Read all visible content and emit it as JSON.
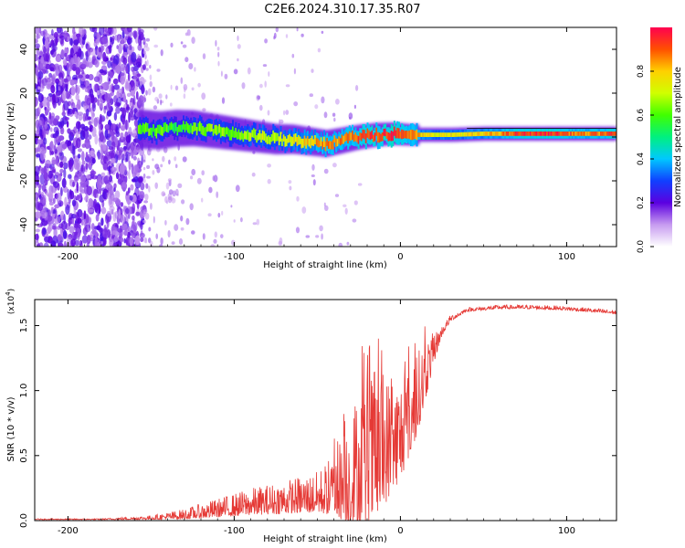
{
  "title": "C2E6.2024.310.17.35.R07",
  "chart_data": [
    {
      "type": "heatmap",
      "title": "C2E6.2024.310.17.35.R07",
      "xlabel": "Height of straight line (km)",
      "ylabel": "Frequency (Hz)",
      "xlim": [
        -220,
        130
      ],
      "ylim": [
        -50,
        50
      ],
      "xticks": [
        -200,
        -100,
        0,
        100
      ],
      "yticks": [
        -40,
        -20,
        0,
        20,
        40
      ],
      "xtick_labels": [
        "-200",
        "-100",
        "0",
        "100"
      ],
      "ytick_labels": [
        "-40",
        "-20",
        "0",
        "20",
        "40"
      ],
      "colorbar": {
        "label": "Normalized spectral amplitude",
        "range": [
          0.0,
          1.0
        ],
        "ticks": [
          0.0,
          0.2,
          0.4,
          0.6,
          0.8
        ],
        "tick_labels": [
          "0.0",
          "0.2",
          "0.4",
          "0.6",
          "0.8"
        ]
      },
      "signal_band": [
        [
          -155,
          3.5,
          0.6
        ],
        [
          -145,
          3,
          0.6
        ],
        [
          -135,
          4,
          0.55
        ],
        [
          -125,
          4,
          0.6
        ],
        [
          -115,
          3,
          0.65
        ],
        [
          -105,
          2,
          0.65
        ],
        [
          -95,
          1,
          0.65
        ],
        [
          -85,
          0,
          0.7
        ],
        [
          -75,
          -1,
          0.7
        ],
        [
          -65,
          -1,
          0.75
        ],
        [
          -55,
          -2,
          0.8
        ],
        [
          -45,
          -3,
          0.85
        ],
        [
          -35,
          -1.5,
          0.85
        ],
        [
          -25,
          0,
          0.9
        ],
        [
          -15,
          1,
          0.92
        ],
        [
          -5,
          1.5,
          0.95
        ],
        [
          5,
          1,
          0.9
        ],
        [
          15,
          1,
          0.75
        ],
        [
          30,
          1,
          0.75
        ],
        [
          50,
          1.5,
          0.78
        ],
        [
          70,
          1.5,
          0.92
        ],
        [
          90,
          1.5,
          0.95
        ],
        [
          110,
          1.5,
          0.85
        ],
        [
          125,
          1.5,
          0.9
        ]
      ]
    },
    {
      "type": "line",
      "xlabel": "Height of straight line (km)",
      "ylabel": "SNR (10 * v/v)",
      "scale_label": "(x10",
      "scale_exp": "4",
      "scale_close": ")",
      "xlim": [
        -220,
        130
      ],
      "ylim": [
        0,
        1.7
      ],
      "xticks": [
        -200,
        -100,
        0,
        100
      ],
      "yticks": [
        0.0,
        0.5,
        1.0,
        1.5
      ],
      "xtick_labels": [
        "-200",
        "-100",
        "0",
        "100"
      ],
      "ytick_labels": [
        "0.0",
        "0.5",
        "1.0",
        "1.5"
      ],
      "color": "#e53935",
      "envelope": {
        "x": [
          -220,
          -180,
          -150,
          -130,
          -110,
          -90,
          -70,
          -50,
          -40,
          -30,
          -25,
          -20,
          -15,
          -10,
          -5,
          0,
          5,
          10,
          15,
          20,
          25,
          30,
          40,
          60,
          80,
          100,
          120,
          130
        ],
        "base": [
          0.01,
          0.01,
          0.02,
          0.04,
          0.08,
          0.12,
          0.15,
          0.18,
          0.22,
          0.3,
          0.35,
          0.4,
          0.45,
          0.5,
          0.55,
          0.62,
          0.75,
          0.9,
          1.1,
          1.3,
          1.45,
          1.55,
          1.62,
          1.64,
          1.64,
          1.63,
          1.61,
          1.6
        ],
        "amp": [
          0.005,
          0.005,
          0.02,
          0.05,
          0.09,
          0.13,
          0.16,
          0.2,
          0.3,
          0.55,
          0.7,
          0.75,
          0.7,
          0.65,
          0.55,
          0.5,
          0.45,
          0.4,
          0.3,
          0.15,
          0.05,
          0.03,
          0.02,
          0.02,
          0.02,
          0.02,
          0.02,
          0.02
        ]
      }
    }
  ]
}
